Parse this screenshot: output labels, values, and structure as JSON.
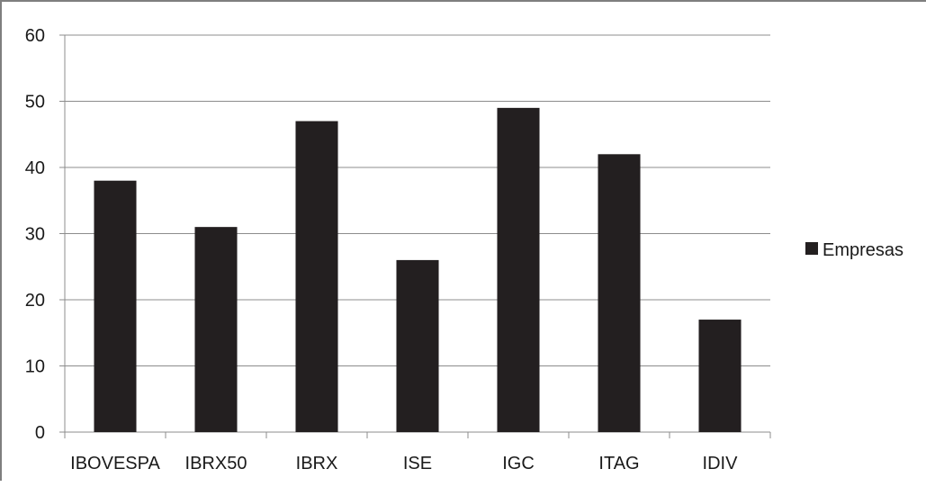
{
  "chart_data": {
    "type": "bar",
    "categories": [
      "IBOVESPA",
      "IBRX50",
      "IBRX",
      "ISE",
      "IGC",
      "ITAG",
      "IDIV"
    ],
    "series": [
      {
        "name": "Empresas",
        "values": [
          38,
          31,
          47,
          26,
          49,
          42,
          17
        ],
        "color": "#231f20"
      }
    ],
    "y_ticks": [
      "0",
      "10",
      "20",
      "30",
      "40",
      "50",
      "60"
    ],
    "ylim": [
      0,
      60
    ],
    "grid": true,
    "legend_position": "right"
  }
}
